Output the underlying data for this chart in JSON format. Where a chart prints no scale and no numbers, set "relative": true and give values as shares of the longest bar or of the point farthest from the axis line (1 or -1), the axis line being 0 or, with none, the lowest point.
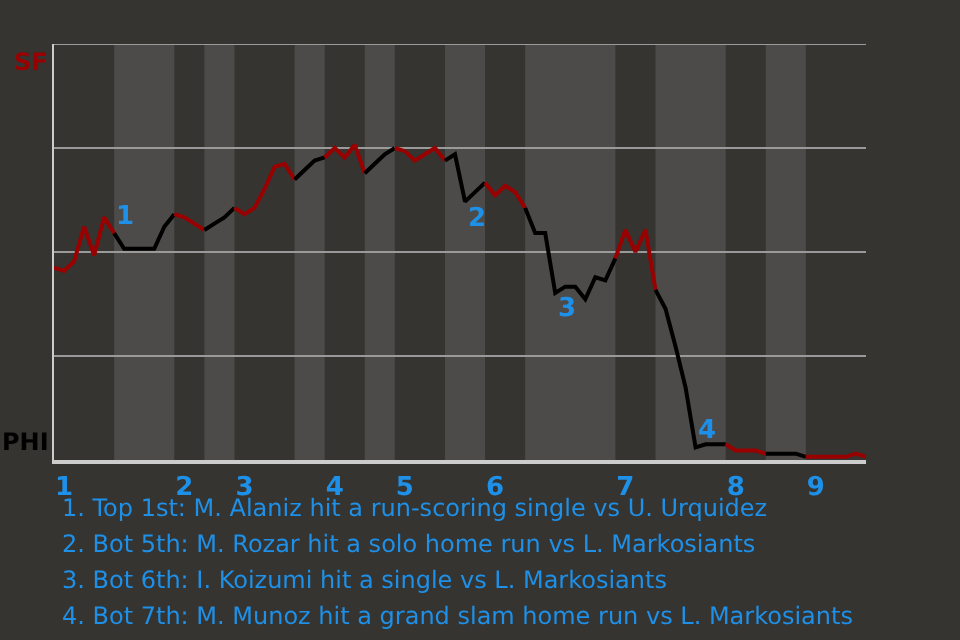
{
  "chart_data": {
    "type": "line",
    "relative": true,
    "categories": [
      null,
      "1",
      null,
      null,
      null,
      null,
      null,
      null,
      null,
      null,
      null,
      null,
      null,
      "2",
      null,
      null,
      null,
      null,
      null,
      "3",
      null,
      null,
      null,
      null,
      null,
      null,
      null,
      null,
      "4",
      null,
      null,
      null,
      null,
      null,
      null,
      "5",
      null,
      null,
      null,
      null,
      null,
      null,
      null,
      null,
      "6",
      null,
      null,
      null,
      null,
      null,
      null,
      null,
      null,
      null,
      null,
      null,
      null,
      "7",
      null,
      null,
      null,
      null,
      null,
      null,
      null,
      null,
      null,
      null,
      "8",
      null,
      null,
      null,
      null,
      null,
      null,
      null,
      "9",
      null,
      null,
      null,
      null,
      null
    ],
    "grid": false,
    "marker": "none",
    "line_style": "solid",
    "ref_lines": [
      {
        "axis": "y",
        "value": 0.33,
        "color": "#9a9a9a"
      },
      {
        "axis": "y",
        "value": 0.66,
        "color": "#9a9a9a"
      },
      {
        "axis": "y",
        "value": 0.99,
        "color": "#9a9a9a"
      },
      {
        "axis": "y",
        "value": 1.32,
        "color": "#9a9a9a"
      }
    ],
    "series": [
      {
        "color": "#990000",
        "values": [
          0.61,
          0.6,
          0.63,
          0.74,
          0.65,
          0.77,
          0.72,
          null,
          null,
          null,
          null,
          null,
          null,
          null,
          null,
          null,
          null,
          null,
          null,
          null,
          null,
          null,
          null,
          null,
          null,
          null,
          null,
          null,
          null,
          null,
          null,
          null,
          null,
          null,
          null,
          null,
          null,
          null,
          null,
          null,
          null,
          null,
          null,
          null,
          null,
          null,
          null,
          null,
          null,
          null,
          null,
          null,
          null,
          null,
          null,
          null,
          null,
          null,
          null,
          null,
          null,
          null,
          null,
          null,
          null,
          null,
          null,
          null,
          null,
          null,
          null,
          null,
          null,
          null,
          null,
          null,
          null,
          null,
          null,
          null,
          null,
          null
        ]
      },
      {
        "color": "#000000",
        "values": [
          null,
          null,
          null,
          null,
          null,
          null,
          0.72,
          0.67,
          0.67,
          0.67,
          0.67,
          0.74,
          0.78,
          null,
          null,
          null,
          null,
          null,
          null,
          null,
          null,
          null,
          null,
          null,
          null,
          null,
          null,
          null,
          null,
          null,
          null,
          null,
          null,
          null,
          null,
          null,
          null,
          null,
          null,
          null,
          null,
          null,
          null,
          null,
          null,
          null,
          null,
          null,
          null,
          null,
          null,
          null,
          null,
          null,
          null,
          null,
          null,
          null,
          null,
          null,
          null,
          null,
          null,
          null,
          null,
          null,
          null,
          null,
          null,
          null,
          null,
          null,
          null,
          null,
          null,
          null,
          null,
          null,
          null,
          null,
          null,
          null
        ]
      },
      {
        "color": "#990000",
        "values": [
          null,
          null,
          null,
          null,
          null,
          null,
          null,
          null,
          null,
          null,
          null,
          null,
          0.78,
          0.77,
          0.75,
          0.73,
          null,
          null,
          null,
          null,
          null,
          null,
          null,
          null,
          null,
          null,
          null,
          null,
          null,
          null,
          null,
          null,
          null,
          null,
          null,
          null,
          null,
          null,
          null,
          null,
          null,
          null,
          null,
          null,
          null,
          null,
          null,
          null,
          null,
          null,
          null,
          null,
          null,
          null,
          null,
          null,
          null,
          null,
          null,
          null,
          null,
          null,
          null,
          null,
          null,
          null,
          null,
          null,
          null,
          null,
          null,
          null,
          null,
          null,
          null,
          null,
          null,
          null,
          null,
          null,
          null,
          null
        ]
      },
      {
        "color": "#000000",
        "values": [
          null,
          null,
          null,
          null,
          null,
          null,
          null,
          null,
          null,
          null,
          null,
          null,
          null,
          null,
          null,
          0.73,
          0.75,
          0.77,
          0.8,
          null,
          null,
          null,
          null,
          null,
          null,
          null,
          null,
          null,
          null,
          null,
          null,
          null,
          null,
          null,
          null,
          null,
          null,
          null,
          null,
          null,
          null,
          null,
          null,
          null,
          null,
          null,
          null,
          null,
          null,
          null,
          null,
          null,
          null,
          null,
          null,
          null,
          null,
          null,
          null,
          null,
          null,
          null,
          null,
          null,
          null,
          null,
          null,
          null,
          null,
          null,
          null,
          null,
          null,
          null,
          null,
          null,
          null,
          null,
          null,
          null,
          null,
          null
        ]
      },
      {
        "color": "#990000",
        "values": [
          null,
          null,
          null,
          null,
          null,
          null,
          null,
          null,
          null,
          null,
          null,
          null,
          null,
          null,
          null,
          null,
          null,
          null,
          0.8,
          0.78,
          0.8,
          0.86,
          0.93,
          0.94,
          0.89,
          null,
          null,
          null,
          null,
          null,
          null,
          null,
          null,
          null,
          null,
          null,
          null,
          null,
          null,
          null,
          null,
          null,
          null,
          null,
          null,
          null,
          null,
          null,
          null,
          null,
          null,
          null,
          null,
          null,
          null,
          null,
          null,
          null,
          null,
          null,
          null,
          null,
          null,
          null,
          null,
          null,
          null,
          null,
          null,
          null,
          null,
          null,
          null,
          null,
          null,
          null,
          null,
          null,
          null,
          null,
          null,
          null
        ]
      },
      {
        "color": "#000000",
        "values": [
          null,
          null,
          null,
          null,
          null,
          null,
          null,
          null,
          null,
          null,
          null,
          null,
          null,
          null,
          null,
          null,
          null,
          null,
          null,
          null,
          null,
          null,
          null,
          null,
          0.89,
          0.92,
          0.95,
          0.96,
          null,
          null,
          null,
          null,
          null,
          null,
          null,
          null,
          null,
          null,
          null,
          null,
          null,
          null,
          null,
          null,
          null,
          null,
          null,
          null,
          null,
          null,
          null,
          null,
          null,
          null,
          null,
          null,
          null,
          null,
          null,
          null,
          null,
          null,
          null,
          null,
          null,
          null,
          null,
          null,
          null,
          null,
          null,
          null,
          null,
          null,
          null,
          null,
          null,
          null,
          null,
          null,
          null,
          null
        ]
      },
      {
        "color": "#990000",
        "values": [
          null,
          null,
          null,
          null,
          null,
          null,
          null,
          null,
          null,
          null,
          null,
          null,
          null,
          null,
          null,
          null,
          null,
          null,
          null,
          null,
          null,
          null,
          null,
          null,
          null,
          null,
          null,
          0.96,
          0.99,
          0.96,
          1,
          0.91,
          null,
          null,
          null,
          null,
          null,
          null,
          null,
          null,
          null,
          null,
          null,
          null,
          null,
          null,
          null,
          null,
          null,
          null,
          null,
          null,
          null,
          null,
          null,
          null,
          null,
          null,
          null,
          null,
          null,
          null,
          null,
          null,
          null,
          null,
          null,
          null,
          null,
          null,
          null,
          null,
          null,
          null,
          null,
          null,
          null,
          null,
          null,
          null,
          null,
          null
        ]
      },
      {
        "color": "#000000",
        "values": [
          null,
          null,
          null,
          null,
          null,
          null,
          null,
          null,
          null,
          null,
          null,
          null,
          null,
          null,
          null,
          null,
          null,
          null,
          null,
          null,
          null,
          null,
          null,
          null,
          null,
          null,
          null,
          null,
          null,
          null,
          null,
          0.91,
          0.94,
          0.97,
          0.99,
          null,
          null,
          null,
          null,
          null,
          null,
          null,
          null,
          null,
          null,
          null,
          null,
          null,
          null,
          null,
          null,
          null,
          null,
          null,
          null,
          null,
          null,
          null,
          null,
          null,
          null,
          null,
          null,
          null,
          null,
          null,
          null,
          null,
          null,
          null,
          null,
          null,
          null,
          null,
          null,
          null,
          null,
          null,
          null,
          null,
          null,
          null
        ]
      },
      {
        "color": "#990000",
        "values": [
          null,
          null,
          null,
          null,
          null,
          null,
          null,
          null,
          null,
          null,
          null,
          null,
          null,
          null,
          null,
          null,
          null,
          null,
          null,
          null,
          null,
          null,
          null,
          null,
          null,
          null,
          null,
          null,
          null,
          null,
          null,
          null,
          null,
          null,
          0.99,
          0.98,
          0.95,
          0.97,
          0.99,
          0.95,
          null,
          null,
          null,
          null,
          null,
          null,
          null,
          null,
          null,
          null,
          null,
          null,
          null,
          null,
          null,
          null,
          null,
          null,
          null,
          null,
          null,
          null,
          null,
          null,
          null,
          null,
          null,
          null,
          null,
          null,
          null,
          null,
          null,
          null,
          null,
          null,
          null,
          null,
          null,
          null,
          null,
          null
        ]
      },
      {
        "color": "#000000",
        "values": [
          null,
          null,
          null,
          null,
          null,
          null,
          null,
          null,
          null,
          null,
          null,
          null,
          null,
          null,
          null,
          null,
          null,
          null,
          null,
          null,
          null,
          null,
          null,
          null,
          null,
          null,
          null,
          null,
          null,
          null,
          null,
          null,
          null,
          null,
          null,
          null,
          null,
          null,
          null,
          0.95,
          0.97,
          0.82,
          0.85,
          0.88,
          null,
          null,
          null,
          null,
          null,
          null,
          null,
          null,
          null,
          null,
          null,
          null,
          null,
          null,
          null,
          null,
          null,
          null,
          null,
          null,
          null,
          null,
          null,
          null,
          null,
          null,
          null,
          null,
          null,
          null,
          null,
          null,
          null,
          null,
          null,
          null,
          null,
          null
        ]
      },
      {
        "color": "#990000",
        "values": [
          null,
          null,
          null,
          null,
          null,
          null,
          null,
          null,
          null,
          null,
          null,
          null,
          null,
          null,
          null,
          null,
          null,
          null,
          null,
          null,
          null,
          null,
          null,
          null,
          null,
          null,
          null,
          null,
          null,
          null,
          null,
          null,
          null,
          null,
          null,
          null,
          null,
          null,
          null,
          null,
          null,
          null,
          null,
          0.88,
          0.84,
          0.87,
          0.85,
          0.8,
          null,
          null,
          null,
          null,
          null,
          null,
          null,
          null,
          null,
          null,
          null,
          null,
          null,
          null,
          null,
          null,
          null,
          null,
          null,
          null,
          null,
          null,
          null,
          null,
          null,
          null,
          null,
          null,
          null,
          null,
          null,
          null,
          null,
          null
        ]
      },
      {
        "color": "#000000",
        "values": [
          null,
          null,
          null,
          null,
          null,
          null,
          null,
          null,
          null,
          null,
          null,
          null,
          null,
          null,
          null,
          null,
          null,
          null,
          null,
          null,
          null,
          null,
          null,
          null,
          null,
          null,
          null,
          null,
          null,
          null,
          null,
          null,
          null,
          null,
          null,
          null,
          null,
          null,
          null,
          null,
          null,
          null,
          null,
          null,
          null,
          null,
          null,
          0.8,
          0.72,
          0.72,
          0.53,
          0.55,
          0.55,
          0.51,
          0.58,
          0.57,
          0.64,
          null,
          null,
          null,
          null,
          null,
          null,
          null,
          null,
          null,
          null,
          null,
          null,
          null,
          null,
          null,
          null,
          null,
          null,
          null,
          null,
          null,
          null,
          null,
          null,
          null
        ]
      },
      {
        "color": "#990000",
        "values": [
          null,
          null,
          null,
          null,
          null,
          null,
          null,
          null,
          null,
          null,
          null,
          null,
          null,
          null,
          null,
          null,
          null,
          null,
          null,
          null,
          null,
          null,
          null,
          null,
          null,
          null,
          null,
          null,
          null,
          null,
          null,
          null,
          null,
          null,
          null,
          null,
          null,
          null,
          null,
          null,
          null,
          null,
          null,
          null,
          null,
          null,
          null,
          null,
          null,
          null,
          null,
          null,
          null,
          null,
          null,
          null,
          0.64,
          0.73,
          0.66,
          0.73,
          0.54,
          null,
          null,
          null,
          null,
          null,
          null,
          null,
          null,
          null,
          null,
          null,
          null,
          null,
          null,
          null,
          null,
          null,
          null,
          null,
          null,
          null
        ]
      },
      {
        "color": "#000000",
        "values": [
          null,
          null,
          null,
          null,
          null,
          null,
          null,
          null,
          null,
          null,
          null,
          null,
          null,
          null,
          null,
          null,
          null,
          null,
          null,
          null,
          null,
          null,
          null,
          null,
          null,
          null,
          null,
          null,
          null,
          null,
          null,
          null,
          null,
          null,
          null,
          null,
          null,
          null,
          null,
          null,
          null,
          null,
          null,
          null,
          null,
          null,
          null,
          null,
          null,
          null,
          null,
          null,
          null,
          null,
          null,
          null,
          null,
          null,
          null,
          null,
          0.54,
          0.48,
          0.36,
          0.23,
          0.04,
          0.05,
          0.05,
          0.05,
          null,
          null,
          null,
          null,
          null,
          null,
          null,
          null,
          null,
          null,
          null,
          null,
          null,
          null
        ]
      },
      {
        "color": "#990000",
        "values": [
          null,
          null,
          null,
          null,
          null,
          null,
          null,
          null,
          null,
          null,
          null,
          null,
          null,
          null,
          null,
          null,
          null,
          null,
          null,
          null,
          null,
          null,
          null,
          null,
          null,
          null,
          null,
          null,
          null,
          null,
          null,
          null,
          null,
          null,
          null,
          null,
          null,
          null,
          null,
          null,
          null,
          null,
          null,
          null,
          null,
          null,
          null,
          null,
          null,
          null,
          null,
          null,
          null,
          null,
          null,
          null,
          null,
          null,
          null,
          null,
          null,
          null,
          null,
          null,
          null,
          null,
          null,
          0.05,
          0.03,
          0.03,
          0.03,
          0.02,
          null,
          null,
          null,
          null,
          null,
          null,
          null,
          null,
          null,
          null
        ]
      },
      {
        "color": "#000000",
        "values": [
          null,
          null,
          null,
          null,
          null,
          null,
          null,
          null,
          null,
          null,
          null,
          null,
          null,
          null,
          null,
          null,
          null,
          null,
          null,
          null,
          null,
          null,
          null,
          null,
          null,
          null,
          null,
          null,
          null,
          null,
          null,
          null,
          null,
          null,
          null,
          null,
          null,
          null,
          null,
          null,
          null,
          null,
          null,
          null,
          null,
          null,
          null,
          null,
          null,
          null,
          null,
          null,
          null,
          null,
          null,
          null,
          null,
          null,
          null,
          null,
          null,
          null,
          null,
          null,
          null,
          null,
          null,
          null,
          null,
          null,
          null,
          0.02,
          0.02,
          0.02,
          0.02,
          0.01,
          null,
          null,
          null,
          null,
          null,
          null
        ]
      },
      {
        "color": "#990000",
        "values": [
          null,
          null,
          null,
          null,
          null,
          null,
          null,
          null,
          null,
          null,
          null,
          null,
          null,
          null,
          null,
          null,
          null,
          null,
          null,
          null,
          null,
          null,
          null,
          null,
          null,
          null,
          null,
          null,
          null,
          null,
          null,
          null,
          null,
          null,
          null,
          null,
          null,
          null,
          null,
          null,
          null,
          null,
          null,
          null,
          null,
          null,
          null,
          null,
          null,
          null,
          null,
          null,
          null,
          null,
          null,
          null,
          null,
          null,
          null,
          null,
          null,
          null,
          null,
          null,
          null,
          null,
          null,
          null,
          null,
          null,
          null,
          null,
          null,
          null,
          null,
          0.01,
          0.01,
          0.01,
          0.01,
          0.01,
          0.02,
          0.01
        ]
      }
    ],
    "annotations": [
      {
        "text": "1",
        "y": 0.72
      },
      {
        "text": "2",
        "y": 0.82
      },
      {
        "text": "3",
        "y": 0.53
      },
      {
        "text": "4",
        "y": 0.04
      },
      "SF",
      "PHI",
      "1. Top 1st: M. Alaniz hit a run-scoring single vs U. Urquidez",
      "2. Bot 5th: M. Rozar hit a solo home run vs L. Markosiants",
      "3. Bot 6th: I. Koizumi hit a single vs L. Markosiants",
      "4. Bot 7th: M. Munoz hit a grand slam home run vs L. Markosiants"
    ]
  }
}
